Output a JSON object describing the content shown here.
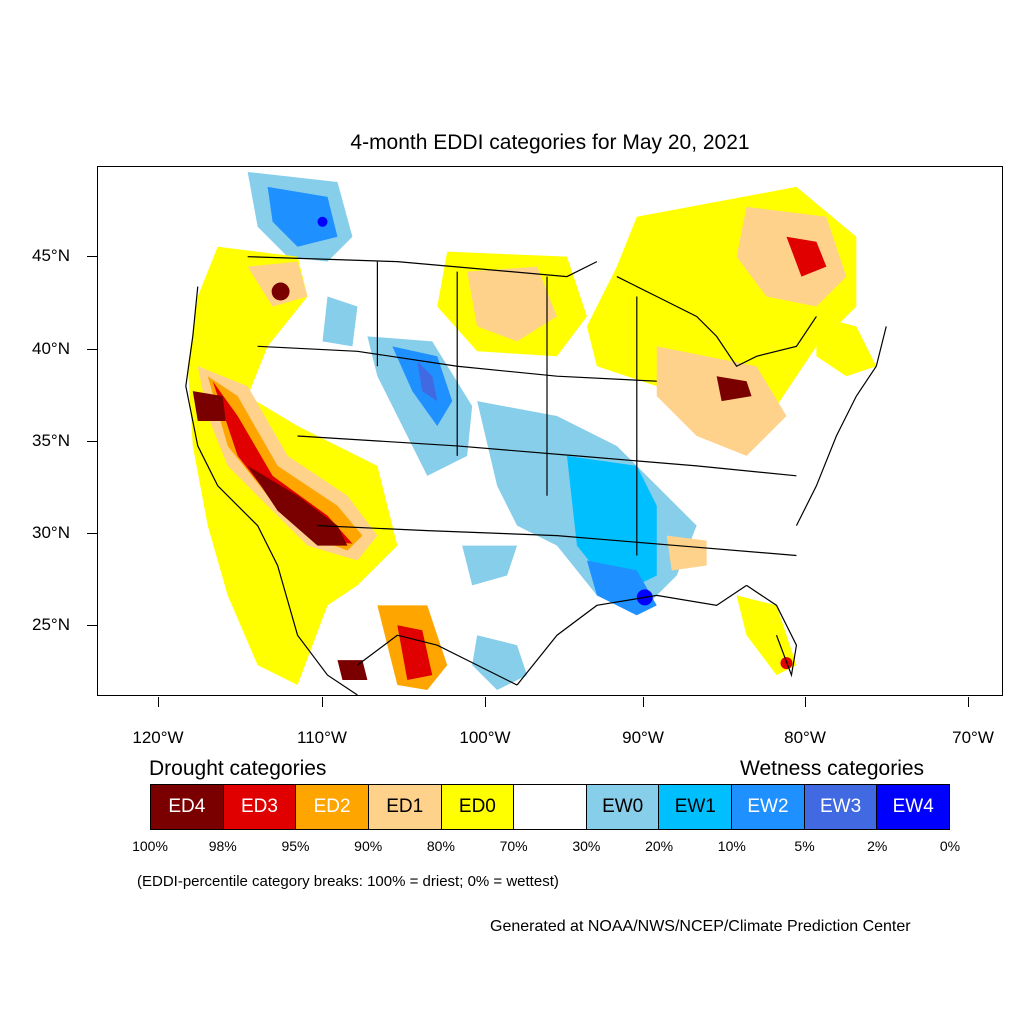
{
  "title": "4-month EDDI categories for May 20, 2021",
  "axes": {
    "lat_labels": [
      "45°N",
      "40°N",
      "35°N",
      "30°N",
      "25°N"
    ],
    "lon_labels": [
      "120°W",
      "110°W",
      "100°W",
      "90°W",
      "80°W",
      "70°W"
    ]
  },
  "legend": {
    "drought_heading": "Drought categories",
    "wetness_heading": "Wetness categories",
    "categories": [
      {
        "label": "ED4",
        "color": "#7a0000",
        "text_color": "#ffffff"
      },
      {
        "label": "ED3",
        "color": "#e00000",
        "text_color": "#ffffff"
      },
      {
        "label": "ED2",
        "color": "#ffa500",
        "text_color": "#ffffff"
      },
      {
        "label": "ED1",
        "color": "#ffd28c",
        "text_color": "#000000"
      },
      {
        "label": "ED0",
        "color": "#ffff00",
        "text_color": "#000000"
      },
      {
        "label": "",
        "color": "#ffffff",
        "text_color": "#000000"
      },
      {
        "label": "EW0",
        "color": "#87ceeb",
        "text_color": "#000000"
      },
      {
        "label": "EW1",
        "color": "#00bfff",
        "text_color": "#000000"
      },
      {
        "label": "EW2",
        "color": "#1e90ff",
        "text_color": "#ffffff"
      },
      {
        "label": "EW3",
        "color": "#4169e1",
        "text_color": "#ffffff"
      },
      {
        "label": "EW4",
        "color": "#0000ff",
        "text_color": "#ffffff"
      }
    ],
    "breaks": [
      "100%",
      "98%",
      "95%",
      "90%",
      "80%",
      "70%",
      "30%",
      "20%",
      "10%",
      "5%",
      "2%",
      "0%"
    ]
  },
  "note": "(EDDI-percentile category breaks: 100% = driest; 0% = wettest)",
  "credit": "Generated at NOAA/NWS/NCEP/Climate Prediction Center"
}
